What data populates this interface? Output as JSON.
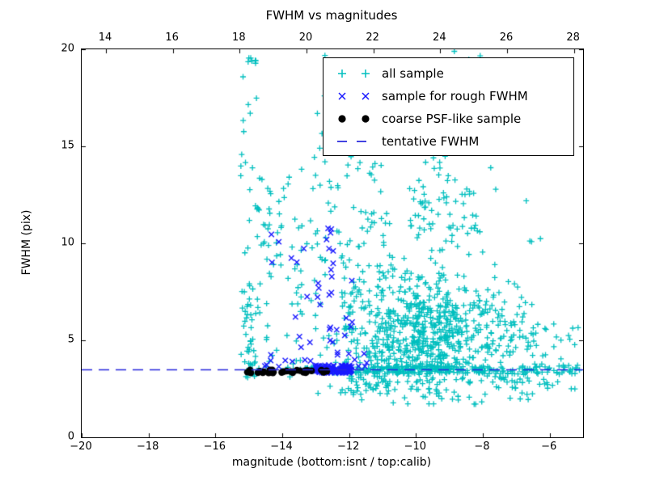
{
  "chart": {
    "title": "FWHM vs magnitudes",
    "xlabel": "magnitude (bottom:isnt / top:calib)",
    "ylabel": "FWHM (pix)"
  },
  "legend": {
    "entries": [
      {
        "label": "all sample"
      },
      {
        "label": "sample for rough FWHM"
      },
      {
        "label": "coarse PSF-like sample"
      },
      {
        "label": "tentative FWHM"
      }
    ]
  },
  "chart_data": {
    "type": "scatter",
    "title": "FWHM vs magnitudes",
    "xlabel": "magnitude (bottom:isnt / top:calib)",
    "ylabel": "FWHM (pix)",
    "xlim": [
      -20,
      -5
    ],
    "ylim": [
      0,
      20
    ],
    "grid": false,
    "legend_position": "upper right",
    "background": "#ffffff",
    "x_bottom_ticks": [
      {
        "v": -20,
        "label": "−20"
      },
      {
        "v": -18,
        "label": "−18"
      },
      {
        "v": -16,
        "label": "−16"
      },
      {
        "v": -14,
        "label": "−14"
      },
      {
        "v": -12,
        "label": "−12"
      },
      {
        "v": -10,
        "label": "−10"
      },
      {
        "v": -8,
        "label": "−8"
      },
      {
        "v": -6,
        "label": "−6"
      }
    ],
    "x_top_ticks": [
      {
        "v": -19.274,
        "label": "14"
      },
      {
        "v": -17.274,
        "label": "16"
      },
      {
        "v": -15.274,
        "label": "18"
      },
      {
        "v": -13.274,
        "label": "20"
      },
      {
        "v": -11.274,
        "label": "22"
      },
      {
        "v": -9.274,
        "label": "24"
      },
      {
        "v": -7.274,
        "label": "26"
      },
      {
        "v": -5.274,
        "label": "28"
      }
    ],
    "calib_minus_isnt_offset": 33.27,
    "y_ticks": [
      {
        "v": 0,
        "label": "0"
      },
      {
        "v": 5,
        "label": "5"
      },
      {
        "v": 10,
        "label": "10"
      },
      {
        "v": 15,
        "label": "15"
      },
      {
        "v": 20,
        "label": "20"
      }
    ],
    "seed": 1234,
    "series": [
      {
        "name": "all sample",
        "marker": "plus",
        "color": "#00bfbf",
        "clusters": [
          {
            "n": 40,
            "x": [
              -15.25,
              -14.75
            ],
            "y": [
              2.2,
              19.8
            ]
          },
          {
            "n": 25,
            "x": [
              -15.2,
              -14.8
            ],
            "y": [
              2.8,
              7.0
            ]
          },
          {
            "n": 10,
            "x": [
              -15.2,
              -13.2
            ],
            "y": [
              3.4,
              3.9
            ]
          },
          {
            "n": 45,
            "x": [
              -14.75,
              -13.6
            ],
            "y": [
              2.6,
              13.5
            ]
          },
          {
            "n": 12,
            "cx": -14.45,
            "cy": 11.7,
            "sx": 0.25,
            "sy": 1.1
          },
          {
            "n": 70,
            "x": [
              -13.6,
              -12.15
            ],
            "y": [
              2.2,
              14.0
            ]
          },
          {
            "n": 16,
            "x": [
              -13.15,
              -11.6
            ],
            "y": [
              14.0,
              19.7
            ]
          },
          {
            "n": 150,
            "x": [
              -12.15,
              -10.6
            ],
            "y": [
              2.2,
              9.0
            ]
          },
          {
            "n": 30,
            "x": [
              -12.1,
              -10.8
            ],
            "y": [
              9.0,
              14.5
            ]
          },
          {
            "n": 560,
            "cx": -9.6,
            "cy": 5.3,
            "sx": 0.85,
            "sy": 1.55,
            "ymin": 1.7
          },
          {
            "n": 80,
            "cx": -9.4,
            "cy": 11.5,
            "sx": 0.75,
            "sy": 1.6
          },
          {
            "n": 45,
            "x": [
              -10.6,
              -7.9
            ],
            "y": [
              14.0,
              19.9
            ]
          },
          {
            "n": 110,
            "x": [
              -8.2,
              -6.4
            ],
            "y": [
              2.2,
              7.5
            ]
          },
          {
            "n": 12,
            "cx": -7.3,
            "cy": 10.0,
            "sx": 0.5,
            "sy": 2.0
          },
          {
            "n": 34,
            "x": [
              -6.4,
              -5.08
            ],
            "y": [
              2.4,
              6.0
            ]
          },
          {
            "n": 25,
            "x": [
              -13.2,
              -12.2
            ],
            "y": [
              3.3,
              3.65
            ]
          },
          {
            "n": 80,
            "x": [
              -12.2,
              -10.5
            ],
            "y": [
              3.28,
              3.66
            ]
          },
          {
            "n": 120,
            "x": [
              -10.5,
              -8.0
            ],
            "y": [
              3.28,
              3.66
            ]
          },
          {
            "n": 60,
            "x": [
              -8.0,
              -5.08
            ],
            "y": [
              3.25,
              3.7
            ]
          },
          {
            "n": 14,
            "x": [
              -12.5,
              -6.5
            ],
            "y": [
              1.7,
              2.6
            ]
          }
        ]
      },
      {
        "name": "sample for rough FWHM",
        "marker": "x",
        "color": "#1a1aff",
        "clusters": [
          {
            "n": 10,
            "x": [
              -14.7,
              -13.3
            ],
            "y": [
              3.9,
              12.0
            ]
          },
          {
            "n": 12,
            "x": [
              -12.68,
              -12.42
            ],
            "y": [
              4.0,
              11.3
            ]
          },
          {
            "n": 18,
            "x": [
              -13.4,
              -11.9
            ],
            "y": [
              3.8,
              8.5
            ]
          },
          {
            "n": 130,
            "x": [
              -13.05,
              -11.92
            ],
            "y": [
              3.3,
              3.72
            ]
          },
          {
            "n": 8,
            "x": [
              -14.65,
              -13.1
            ],
            "y": [
              3.45,
              4.3
            ]
          },
          {
            "n": 5,
            "x": [
              -11.9,
              -11.45
            ],
            "y": [
              3.5,
              4.4
            ]
          }
        ]
      },
      {
        "name": "coarse PSF-like sample",
        "marker": "dot",
        "color": "#000000",
        "clusters": [
          {
            "n": 16,
            "x": [
              -15.15,
              -14.25
            ],
            "y": [
              3.32,
              3.48
            ]
          },
          {
            "n": 14,
            "x": [
              -14.05,
              -13.12
            ],
            "y": [
              3.32,
              3.48
            ]
          },
          {
            "n": 5,
            "x": [
              -12.97,
              -12.65
            ],
            "y": [
              3.35,
              3.46
            ]
          }
        ]
      }
    ],
    "ref_line": {
      "label": "tentative FWHM",
      "y": 3.48,
      "color": "#2828dd",
      "dash": [
        13,
        8
      ]
    }
  }
}
